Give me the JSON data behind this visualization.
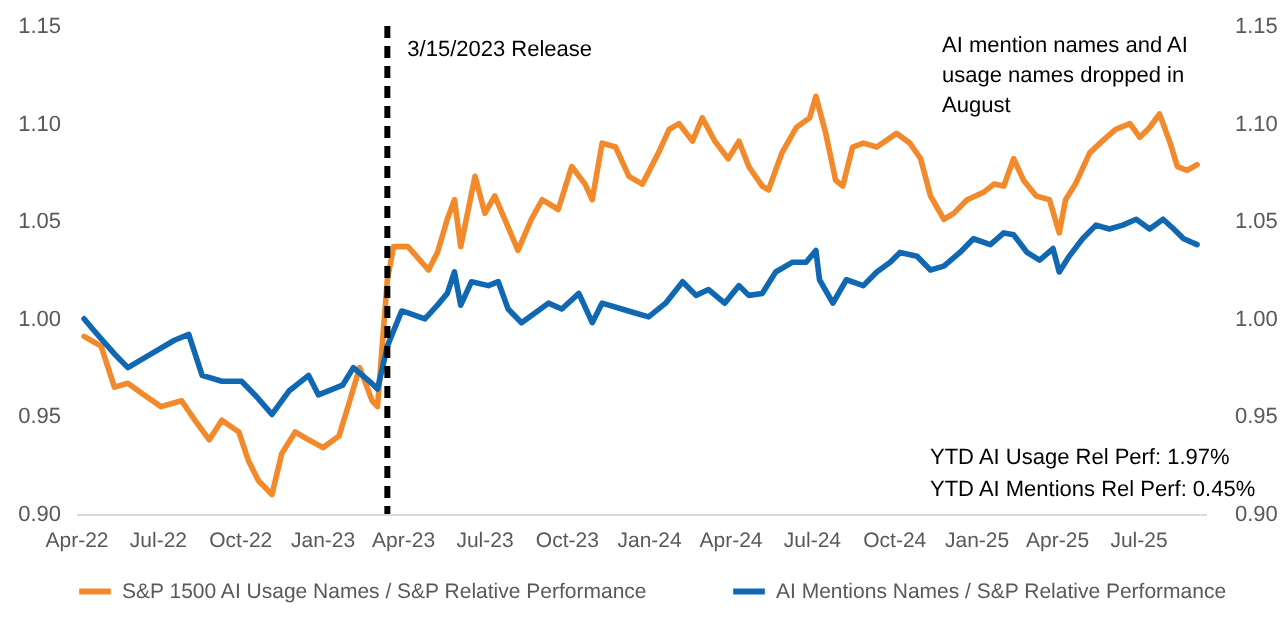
{
  "chart_data": {
    "type": "line",
    "series": [
      {
        "name": "S&P 1500 AI Usage Names / S&P Relative Performance",
        "color": "#f28a2c",
        "x": [
          "2022-04-10",
          "2022-04-29",
          "2022-05-14",
          "2022-05-29",
          "2022-06-13",
          "2022-07-05",
          "2022-07-28",
          "2022-08-12",
          "2022-08-28",
          "2022-09-11",
          "2022-09-30",
          "2022-10-11",
          "2022-10-22",
          "2022-11-06",
          "2022-11-17",
          "2022-12-02",
          "2022-12-17",
          "2023-01-02",
          "2023-01-20",
          "2023-02-01",
          "2023-02-12",
          "2023-02-26",
          "2023-03-04",
          "2023-03-15",
          "2023-03-22",
          "2023-04-07",
          "2023-04-30",
          "2023-05-10",
          "2023-05-21",
          "2023-05-29",
          "2023-06-05",
          "2023-06-21",
          "2023-07-02",
          "2023-07-13",
          "2023-07-28",
          "2023-08-08",
          "2023-08-23",
          "2023-09-04",
          "2023-09-22",
          "2023-10-07",
          "2023-10-22",
          "2023-10-30",
          "2023-11-10",
          "2023-11-25",
          "2023-12-10",
          "2023-12-25",
          "2024-01-12",
          "2024-01-24",
          "2024-02-04",
          "2024-02-19",
          "2024-03-01",
          "2024-03-15",
          "2024-03-30",
          "2024-04-11",
          "2024-04-22",
          "2024-05-07",
          "2024-05-14",
          "2024-05-29",
          "2024-06-14",
          "2024-06-29",
          "2024-07-06",
          "2024-07-17",
          "2024-07-28",
          "2024-08-05",
          "2024-08-16",
          "2024-08-28",
          "2024-09-12",
          "2024-10-04",
          "2024-10-19",
          "2024-10-31",
          "2024-11-11",
          "2024-11-26",
          "2024-12-07",
          "2024-12-22",
          "2025-01-10",
          "2025-01-21",
          "2025-02-01",
          "2025-02-12",
          "2025-02-23",
          "2025-03-09",
          "2025-03-24",
          "2025-04-04",
          "2025-04-11",
          "2025-04-22",
          "2025-05-08",
          "2025-05-22",
          "2025-06-06",
          "2025-06-22",
          "2025-07-03",
          "2025-07-14",
          "2025-07-25",
          "2025-08-06",
          "2025-08-14",
          "2025-08-25",
          "2025-09-05"
        ],
        "values": [
          0.991,
          0.986,
          0.965,
          0.967,
          0.962,
          0.955,
          0.958,
          0.948,
          0.938,
          0.948,
          0.942,
          0.927,
          0.917,
          0.91,
          0.931,
          0.942,
          0.938,
          0.934,
          0.94,
          0.958,
          0.975,
          0.958,
          0.955,
          1.02,
          1.037,
          1.037,
          1.025,
          1.034,
          1.051,
          1.061,
          1.037,
          1.073,
          1.054,
          1.063,
          1.047,
          1.035,
          1.051,
          1.061,
          1.056,
          1.078,
          1.069,
          1.061,
          1.09,
          1.088,
          1.073,
          1.069,
          1.085,
          1.097,
          1.1,
          1.091,
          1.103,
          1.091,
          1.082,
          1.091,
          1.078,
          1.068,
          1.066,
          1.085,
          1.098,
          1.103,
          1.114,
          1.095,
          1.071,
          1.068,
          1.088,
          1.09,
          1.088,
          1.095,
          1.09,
          1.082,
          1.063,
          1.051,
          1.054,
          1.061,
          1.065,
          1.069,
          1.068,
          1.082,
          1.071,
          1.063,
          1.061,
          1.044,
          1.061,
          1.069,
          1.085,
          1.091,
          1.097,
          1.1,
          1.093,
          1.098,
          1.105,
          1.09,
          1.078,
          1.076,
          1.079
        ]
      },
      {
        "name": "AI Mentions Names / S&P Relative Performance",
        "color": "#1068b3",
        "x": [
          "2022-04-10",
          "2022-04-21",
          "2022-05-14",
          "2022-05-29",
          "2022-06-24",
          "2022-07-20",
          "2022-08-05",
          "2022-08-20",
          "2022-09-11",
          "2022-10-03",
          "2022-10-18",
          "2022-11-06",
          "2022-11-25",
          "2022-12-17",
          "2022-12-28",
          "2023-01-24",
          "2023-02-05",
          "2023-02-23",
          "2023-03-04",
          "2023-03-15",
          "2023-03-31",
          "2023-04-07",
          "2023-04-26",
          "2023-05-10",
          "2023-05-21",
          "2023-05-29",
          "2023-06-05",
          "2023-06-17",
          "2023-07-06",
          "2023-07-17",
          "2023-07-28",
          "2023-08-12",
          "2023-08-27",
          "2023-09-11",
          "2023-09-26",
          "2023-10-15",
          "2023-10-30",
          "2023-11-10",
          "2023-12-02",
          "2023-12-17",
          "2024-01-01",
          "2024-01-20",
          "2024-02-08",
          "2024-02-23",
          "2024-03-08",
          "2024-03-26",
          "2024-04-11",
          "2024-04-22",
          "2024-05-07",
          "2024-05-22",
          "2024-06-10",
          "2024-06-25",
          "2024-07-06",
          "2024-07-10",
          "2024-07-25",
          "2024-08-09",
          "2024-08-28",
          "2024-09-12",
          "2024-09-27",
          "2024-10-08",
          "2024-10-27",
          "2024-11-11",
          "2024-11-26",
          "2024-12-14",
          "2024-12-29",
          "2025-01-17",
          "2025-02-01",
          "2025-02-12",
          "2025-02-27",
          "2025-03-13",
          "2025-03-28",
          "2025-04-04",
          "2025-04-15",
          "2025-04-30",
          "2025-05-15",
          "2025-05-30",
          "2025-06-14",
          "2025-06-29",
          "2025-07-14",
          "2025-07-29",
          "2025-08-10",
          "2025-08-21",
          "2025-09-05"
        ],
        "values": [
          1.0,
          0.994,
          0.982,
          0.975,
          0.982,
          0.989,
          0.992,
          0.971,
          0.968,
          0.968,
          0.961,
          0.951,
          0.963,
          0.971,
          0.961,
          0.966,
          0.975,
          0.968,
          0.964,
          0.986,
          1.004,
          1.003,
          1.0,
          1.007,
          1.013,
          1.024,
          1.007,
          1.019,
          1.017,
          1.019,
          1.005,
          0.998,
          1.003,
          1.008,
          1.005,
          1.013,
          0.998,
          1.008,
          1.005,
          1.003,
          1.001,
          1.008,
          1.019,
          1.012,
          1.015,
          1.008,
          1.017,
          1.012,
          1.013,
          1.024,
          1.029,
          1.029,
          1.035,
          1.02,
          1.008,
          1.02,
          1.017,
          1.024,
          1.029,
          1.034,
          1.032,
          1.025,
          1.027,
          1.034,
          1.041,
          1.038,
          1.044,
          1.043,
          1.034,
          1.03,
          1.036,
          1.024,
          1.032,
          1.041,
          1.048,
          1.046,
          1.048,
          1.051,
          1.046,
          1.051,
          1.046,
          1.041,
          1.038
        ]
      }
    ],
    "xlim": [
      "2022-04-01",
      "2025-09-15"
    ],
    "xticks": [
      {
        "value": "2022-04-01",
        "label": "Apr-22"
      },
      {
        "value": "2022-07-01",
        "label": "Jul-22"
      },
      {
        "value": "2022-10-01",
        "label": "Oct-22"
      },
      {
        "value": "2023-01-01",
        "label": "Jan-23"
      },
      {
        "value": "2023-04-01",
        "label": "Apr-23"
      },
      {
        "value": "2023-07-01",
        "label": "Jul-23"
      },
      {
        "value": "2023-10-01",
        "label": "Oct-23"
      },
      {
        "value": "2024-01-01",
        "label": "Jan-24"
      },
      {
        "value": "2024-04-01",
        "label": "Apr-24"
      },
      {
        "value": "2024-07-01",
        "label": "Jul-24"
      },
      {
        "value": "2024-10-01",
        "label": "Oct-24"
      },
      {
        "value": "2025-01-01",
        "label": "Jan-25"
      },
      {
        "value": "2025-04-01",
        "label": "Apr-25"
      },
      {
        "value": "2025-07-01",
        "label": "Jul-25"
      }
    ],
    "ylim": [
      0.9,
      1.15
    ],
    "yticks": [
      {
        "value": 0.9,
        "label": "0.90"
      },
      0.95,
      {
        "value": 1.0,
        "label": "1.00"
      },
      1.05,
      {
        "value": 1.1,
        "label": "1.10"
      },
      1.15
    ],
    "y2lim": [
      0.9,
      1.15
    ],
    "y2ticks": [
      {
        "value": 0.9,
        "label": "0.90"
      },
      0.95,
      {
        "value": 1.0,
        "label": "1.00"
      },
      1.05,
      {
        "value": 1.1,
        "label": "1.10"
      },
      1.15
    ],
    "ref_lines": [
      {
        "axis": "x",
        "value": "2023-03-15",
        "label": "3/15/2023 Release",
        "color": "#000000",
        "line_style": "dashed"
      }
    ],
    "annotations": [
      "AI mention names and AI usage names dropped in August",
      "YTD AI Usage  Rel Perf:  1.97%",
      "YTD AI Mentions Rel Perf:  0.45%"
    ],
    "legend": "bottom",
    "grid": false
  }
}
